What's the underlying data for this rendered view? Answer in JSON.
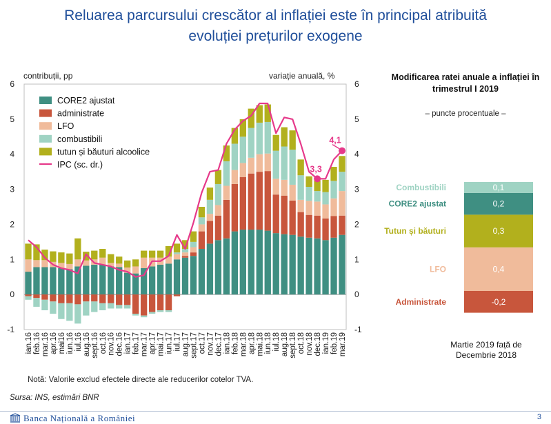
{
  "page": {
    "title_line1": "Reluarea parcursului crescător al inflației este în principal atribuită",
    "title_line2": "evoluției prețurilor exogene",
    "note": "Notă: Valorile exclud efectele directe ale reducerilor cotelor TVA.",
    "source": "Sursa: INS, estimări BNR",
    "footer_brand": "Banca Națională a României",
    "page_number": "3"
  },
  "colors": {
    "core2": "#3f8f82",
    "administrate": "#c8563c",
    "lfo": "#f0bb9b",
    "combustibili": "#9fd3c3",
    "tutun": "#b2b01d",
    "ipc": "#e6398a",
    "title_blue": "#1f4e9a"
  },
  "chart_data": [
    {
      "type": "bar",
      "stacked": true,
      "ylabel_left": "contribuții, pp",
      "ylabel_right": "variație anuală, %",
      "ylim": [
        -1,
        6
      ],
      "yticks": [
        "-1",
        "0",
        "1",
        "2",
        "3",
        "4",
        "5",
        "6"
      ],
      "legend_position": "top-left",
      "categories": [
        "ian.16",
        "feb.16",
        "mar.16",
        "apr.16",
        "mai16",
        "iun.16",
        "iul.16",
        "aug.16",
        "sep.16",
        "oct.16",
        "nov.16",
        "dec.16",
        "ian.17",
        "feb.17",
        "mar.17",
        "apr.17",
        "mai17",
        "iun.17",
        "iul.17",
        "aug.17",
        "sep.17",
        "oct.17",
        "nov.17",
        "dec.17",
        "ian.18",
        "feb.18",
        "mar.18",
        "apr.18",
        "mai18",
        "iun.18",
        "iul.18",
        "aug.18",
        "sep.18",
        "oct.18",
        "nov.18",
        "dec.18",
        "ian.19",
        "feb.19",
        "mar.19"
      ],
      "x_tick_labels": [
        "ian.16",
        "feb.16",
        "mar.16",
        "apr.16",
        "mai16",
        "iun.16",
        "iul.16",
        "aug.16",
        "sept.16",
        "oct.16",
        "nov.16",
        "dec.16",
        "ian.17",
        "feb.17",
        "mar.17",
        "apr.17",
        "mai.17",
        "iun.17",
        "iul.17",
        "aug.17",
        "sept.17",
        "oct.17",
        "nov.17",
        "dec.17",
        "ian.18",
        "feb.18",
        "mar.18",
        "apr.18",
        "mai.18",
        "iun.18",
        "iul.18",
        "aug.18",
        "sept.18",
        "oct.18",
        "nov.18",
        "dec.18",
        "ian.19",
        "feb.19",
        "mar.19"
      ],
      "x_tick_every": 1,
      "series": [
        {
          "name": "CORE2 ajustat",
          "color_key": "core2",
          "values": [
            0.65,
            0.78,
            0.78,
            0.78,
            0.75,
            0.72,
            0.8,
            0.82,
            0.85,
            0.85,
            0.8,
            0.78,
            0.62,
            0.6,
            0.75,
            0.8,
            0.85,
            0.88,
            1.0,
            1.05,
            1.1,
            1.3,
            1.45,
            1.55,
            1.6,
            1.8,
            1.85,
            1.85,
            1.85,
            1.82,
            1.75,
            1.72,
            1.7,
            1.65,
            1.62,
            1.6,
            1.55,
            1.62,
            1.7
          ]
        },
        {
          "name": "administrate",
          "color_key": "administrate",
          "values": [
            -0.05,
            -0.1,
            -0.15,
            -0.2,
            -0.25,
            -0.25,
            -0.28,
            -0.2,
            -0.2,
            -0.25,
            -0.25,
            -0.3,
            -0.3,
            -0.55,
            -0.6,
            -0.5,
            -0.45,
            -0.45,
            -0.05,
            0.05,
            0.1,
            0.5,
            0.65,
            0.7,
            1.1,
            1.35,
            1.5,
            1.6,
            1.65,
            1.7,
            1.1,
            1.1,
            0.98,
            0.7,
            0.65,
            0.65,
            0.62,
            0.62,
            0.55
          ]
        },
        {
          "name": "LFO",
          "color_key": "lfo",
          "values": [
            0.35,
            0.2,
            0.2,
            0.15,
            0.15,
            0.15,
            0.2,
            0.15,
            0.15,
            0.2,
            0.1,
            0.1,
            0.15,
            0.2,
            0.3,
            0.25,
            0.2,
            0.2,
            0.15,
            0.1,
            0.15,
            0.2,
            0.2,
            0.3,
            0.4,
            0.4,
            0.4,
            0.45,
            0.5,
            0.5,
            0.45,
            0.45,
            0.45,
            0.35,
            0.4,
            0.4,
            0.4,
            0.5,
            0.7
          ]
        },
        {
          "name": "combustibili",
          "color_key": "combustibili",
          "values": [
            -0.1,
            -0.25,
            -0.3,
            -0.35,
            -0.45,
            -0.5,
            -0.55,
            -0.4,
            -0.3,
            -0.2,
            -0.15,
            -0.1,
            -0.1,
            -0.05,
            -0.05,
            -0.05,
            -0.05,
            -0.05,
            0.05,
            0.1,
            0.15,
            0.2,
            0.4,
            0.6,
            0.7,
            0.75,
            0.75,
            0.85,
            0.9,
            0.9,
            0.8,
            0.95,
            1.0,
            0.7,
            0.4,
            0.3,
            0.35,
            0.5,
            0.55
          ]
        },
        {
          "name": "tutun și băuturi alcoolice",
          "color_key": "tutun",
          "values": [
            0.45,
            0.45,
            0.3,
            0.3,
            0.3,
            0.3,
            0.6,
            0.25,
            0.25,
            0.25,
            0.25,
            0.2,
            0.2,
            0.2,
            0.2,
            0.2,
            0.2,
            0.3,
            0.25,
            0.25,
            0.3,
            0.3,
            0.35,
            0.4,
            0.45,
            0.45,
            0.5,
            0.55,
            0.5,
            0.5,
            0.45,
            0.55,
            0.55,
            0.45,
            0.3,
            0.3,
            0.35,
            0.4,
            0.45
          ]
        },
        {
          "name": "IPC (sc. dr.)",
          "color_key": "ipc",
          "type": "line",
          "axis": "right",
          "values": [
            1.55,
            1.35,
            1.05,
            0.85,
            0.75,
            0.7,
            0.6,
            1.15,
            0.9,
            0.85,
            0.8,
            0.7,
            0.65,
            0.5,
            0.55,
            0.95,
            0.95,
            1.1,
            1.7,
            1.3,
            2.05,
            2.9,
            3.5,
            3.55,
            4.3,
            4.7,
            4.95,
            5.1,
            5.45,
            5.45,
            4.6,
            5.05,
            5.0,
            4.3,
            3.5,
            3.3,
            3.3,
            3.85,
            4.1
          ]
        }
      ],
      "annotations": [
        {
          "text": "3,3",
          "x_category": "dec.18",
          "y": 3.3
        },
        {
          "text": "4,1",
          "x_category": "mar.19",
          "y": 4.1
        }
      ]
    },
    {
      "type": "bar",
      "stacked": true,
      "title": "Modificarea ratei anuale a inflației în trimestrul I 2019",
      "subtitle": "– puncte procentuale –",
      "footer": "Martie 2019 față de Decembrie 2018",
      "categories": [
        "Martie 2019 față de Decembrie 2018"
      ],
      "series": [
        {
          "name": "Combustibili",
          "label": "0,1",
          "value": 0.1,
          "color_key": "combustibili",
          "label_color": "#9fd3c3"
        },
        {
          "name": "CORE2 ajustat",
          "label": "0,2",
          "value": 0.2,
          "color_key": "core2",
          "label_color": "#3f8f82"
        },
        {
          "name": "Tutun și băuturi",
          "label": "0,3",
          "value": 0.3,
          "color_key": "tutun",
          "label_color": "#b2b01d"
        },
        {
          "name": "LFO",
          "label": "0,4",
          "value": 0.4,
          "color_key": "lfo",
          "label_color": "#f0bb9b"
        },
        {
          "name": "Administrate",
          "label": "-0,2",
          "value": -0.2,
          "color_key": "administrate",
          "label_color": "#c8563c"
        }
      ]
    }
  ]
}
